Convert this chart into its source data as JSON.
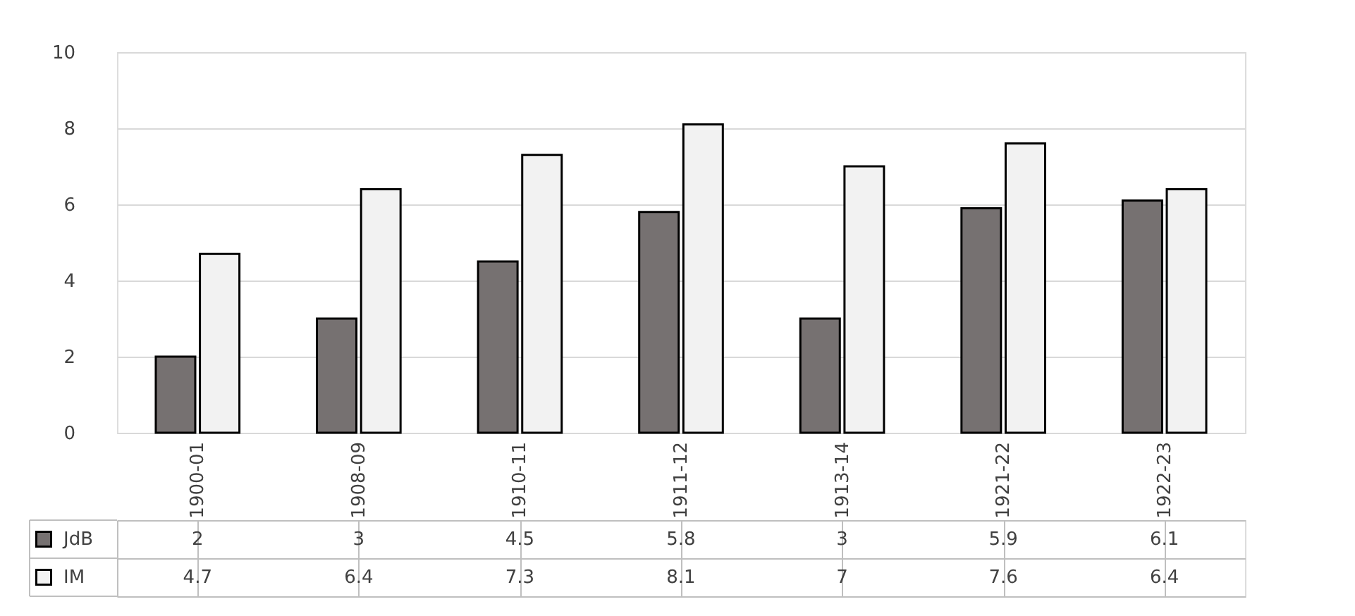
{
  "chart_data": {
    "type": "bar",
    "categories": [
      "1900-01",
      "1908-09",
      "1910-11",
      "1911-12",
      "1913-14",
      "1921-22",
      "1922-23"
    ],
    "series": [
      {
        "name": "JdB",
        "color": "#767171",
        "values": [
          2,
          3,
          4.5,
          5.8,
          3,
          5.9,
          6.1
        ]
      },
      {
        "name": "IM",
        "color": "#f2f2f2",
        "values": [
          4.7,
          6.4,
          7.3,
          8.1,
          7,
          7.6,
          6.4
        ]
      }
    ],
    "ylim": [
      0,
      10
    ],
    "yticks": [
      0,
      2,
      4,
      6,
      8,
      10
    ],
    "grid": "y",
    "legend": "bottom",
    "data_labels": true
  }
}
